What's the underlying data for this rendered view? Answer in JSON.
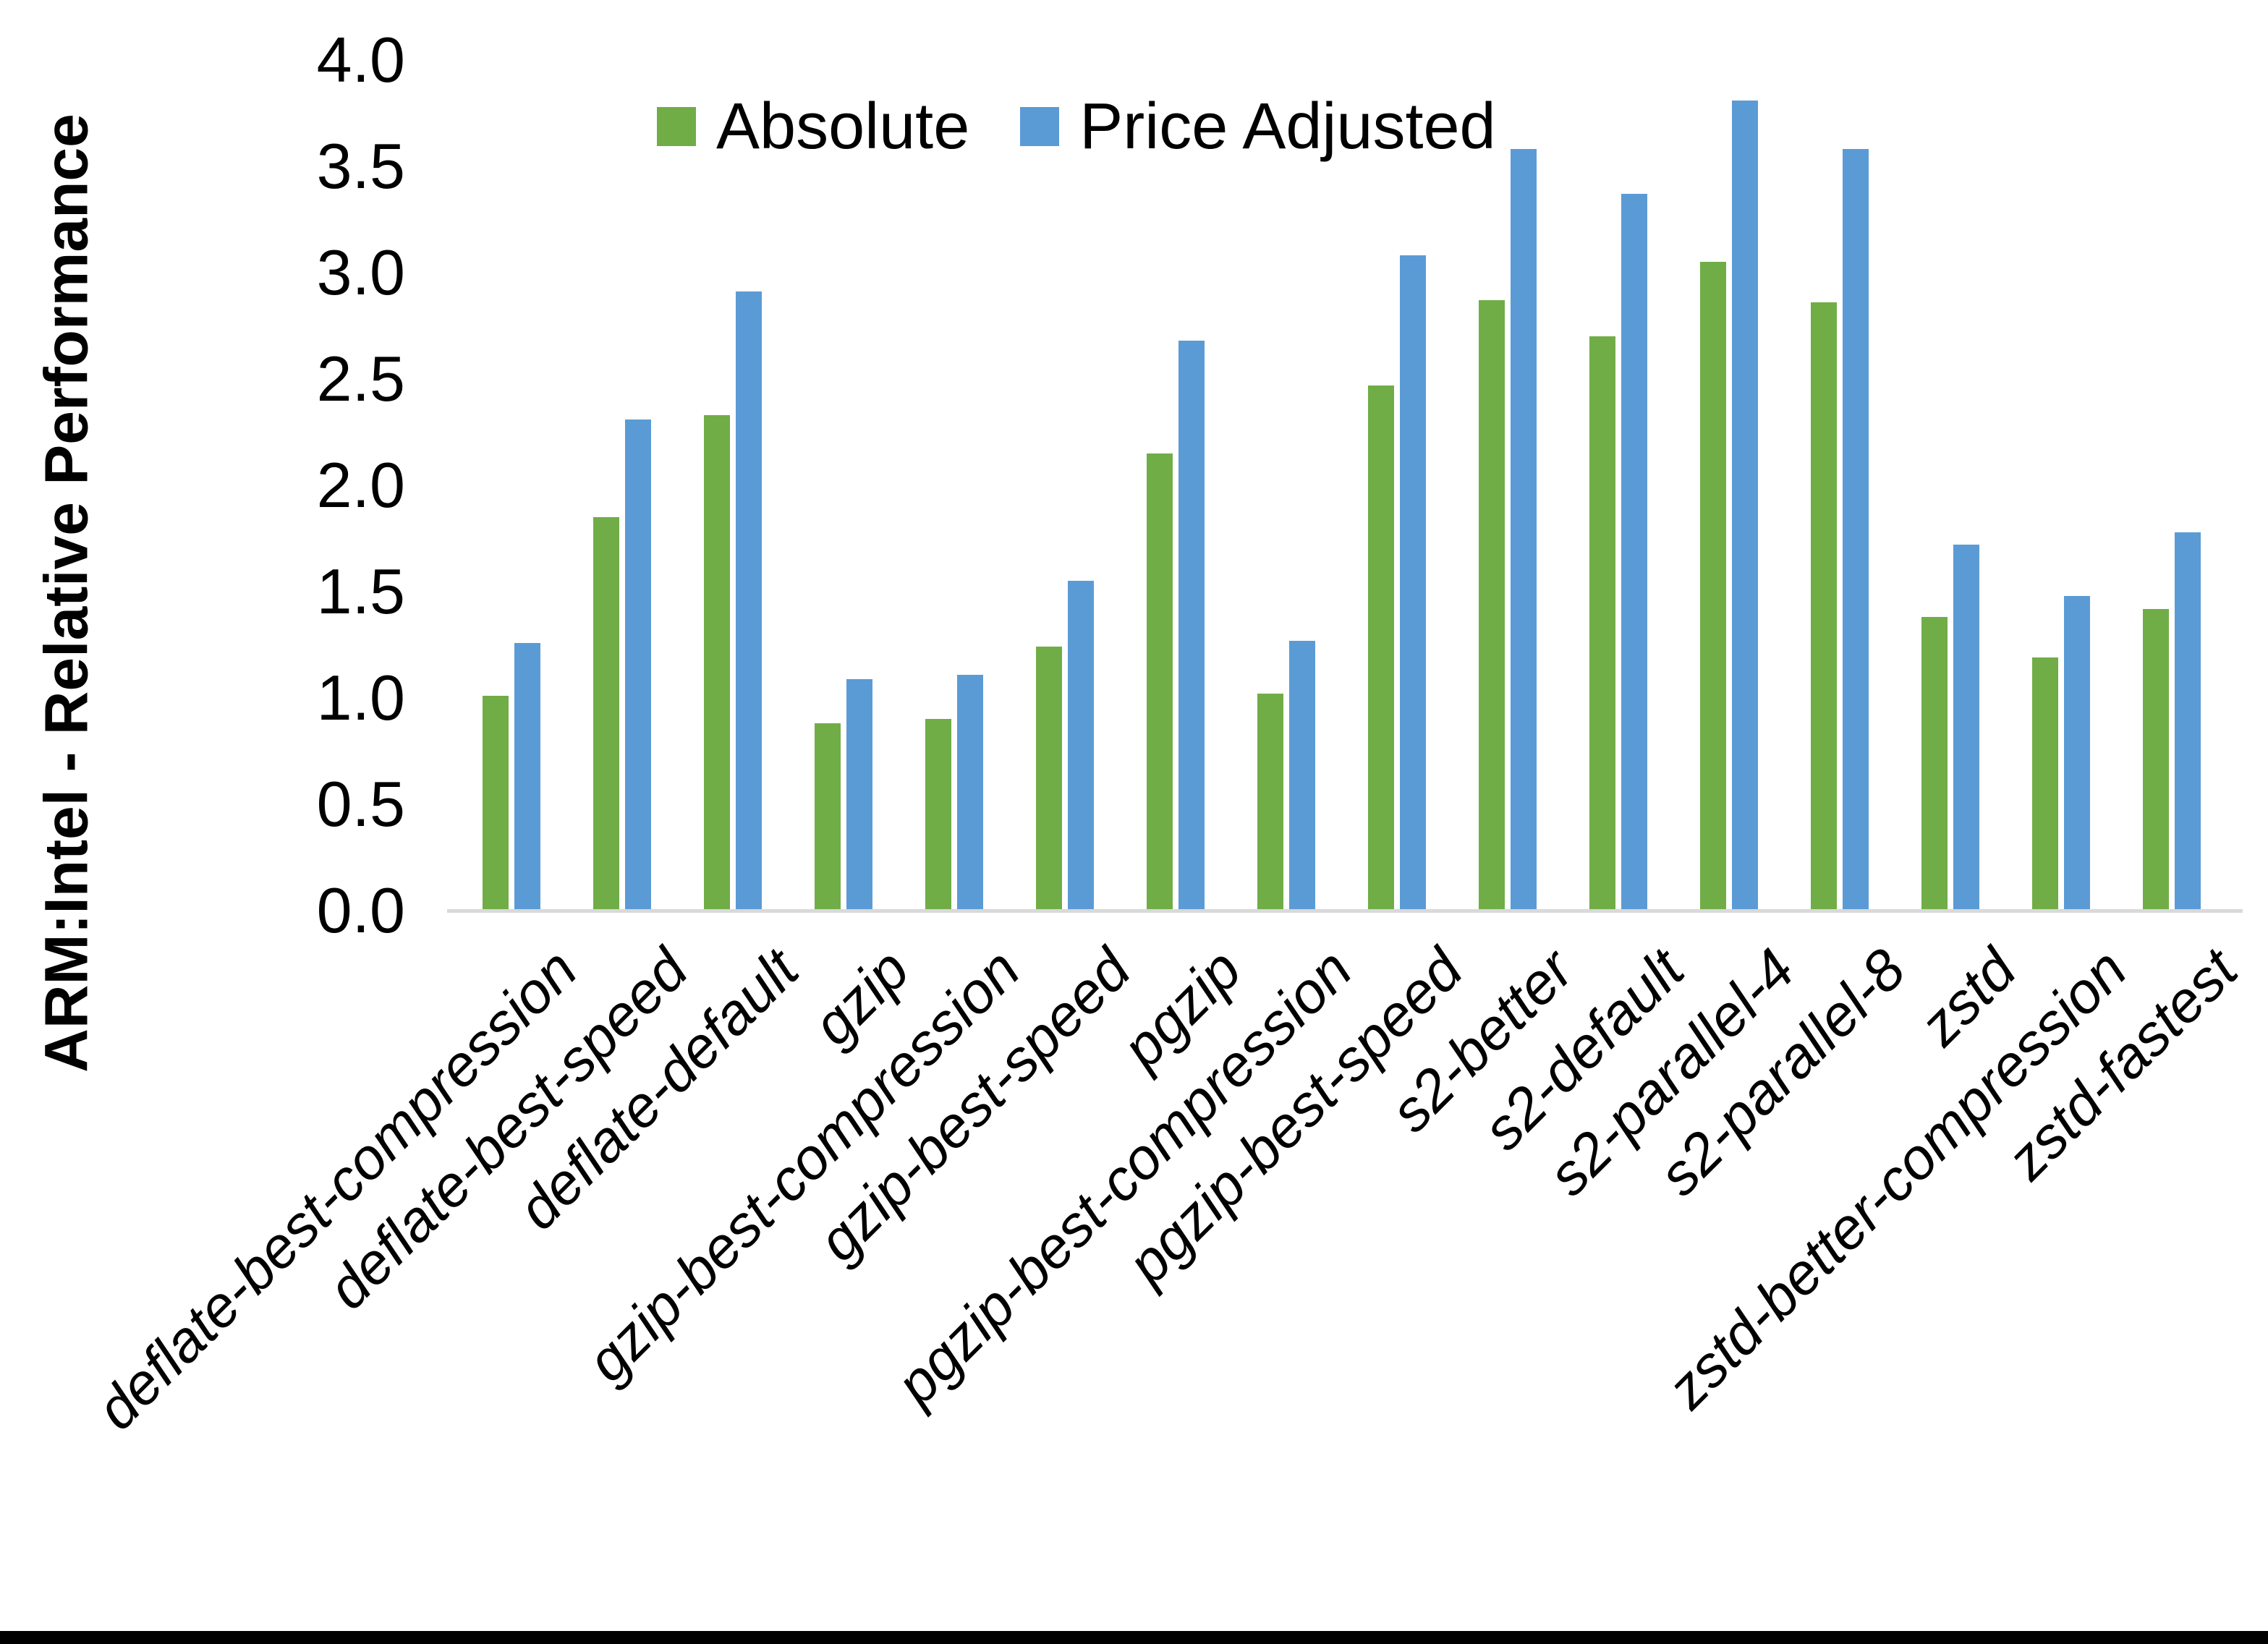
{
  "chart_data": {
    "type": "bar",
    "title": "",
    "xlabel": "",
    "ylabel": "ARM:Intel - Relative Performance",
    "ylim": [
      0.0,
      4.0
    ],
    "ytick_step": 0.5,
    "ytick_labels": [
      "0.0",
      "0.5",
      "1.0",
      "1.5",
      "2.0",
      "2.5",
      "3.0",
      "3.5",
      "4.0"
    ],
    "grid": false,
    "legend_position": "top-center",
    "categories": [
      "deflate-best-compression",
      "deflate-best-speed",
      "deflate-default",
      "gzip",
      "gzip-best-compression",
      "gzip-best-speed",
      "pgzip",
      "pgzip-best-compression",
      "pgzip-best-speed",
      "s2-better",
      "s2-default",
      "s2-parallel-4",
      "s2-parallel-8",
      "zstd",
      "zstd-better-compression",
      "zstd-fastest"
    ],
    "series": [
      {
        "name": "Absolute",
        "color": "#70AD47",
        "values": [
          1.01,
          1.85,
          2.33,
          0.88,
          0.9,
          1.24,
          2.15,
          1.02,
          2.47,
          2.87,
          2.7,
          3.05,
          2.86,
          1.38,
          1.19,
          1.42
        ]
      },
      {
        "name": "Price Adjusted",
        "color": "#5B9BD5",
        "values": [
          1.26,
          2.31,
          2.91,
          1.09,
          1.11,
          1.55,
          2.68,
          1.27,
          3.08,
          3.58,
          3.37,
          3.81,
          3.58,
          1.72,
          1.48,
          1.78
        ]
      }
    ]
  },
  "colors": {
    "background": "#FFFFFF",
    "axis_line": "#D9D9D9",
    "text": "#000000",
    "bottom_border": "#000000"
  }
}
